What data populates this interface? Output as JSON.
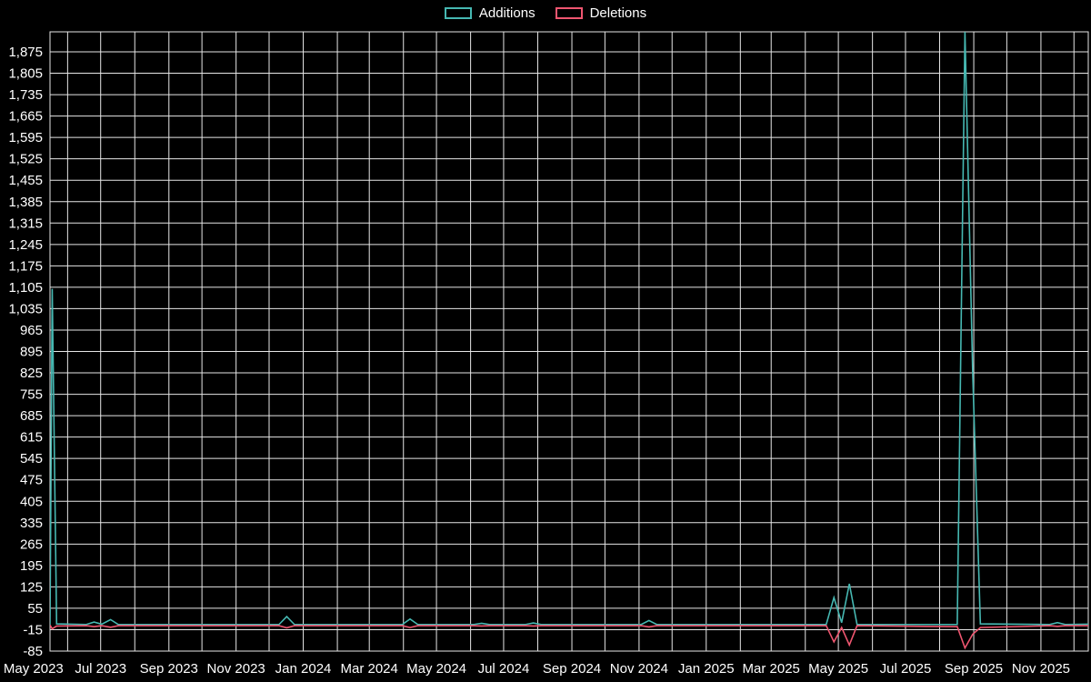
{
  "legend": {
    "additions_label": "Additions",
    "deletions_label": "Deletions"
  },
  "chart_data": {
    "type": "line",
    "title": "",
    "xlabel": "",
    "ylabel": "",
    "grid": true,
    "legend_position": "top-center",
    "colors": {
      "additions": "#46b8b2",
      "deletions": "#ef5670",
      "grid": "#e6e6e6",
      "text": "#ffffff",
      "background": "#000000"
    },
    "y_axis": {
      "min": -85,
      "max": 1875,
      "tick_step": 70,
      "tick_values": [
        1875,
        1805,
        1735,
        1665,
        1595,
        1525,
        1455,
        1385,
        1315,
        1245,
        1175,
        1105,
        1035,
        965,
        895,
        825,
        755,
        685,
        615,
        545,
        475,
        405,
        335,
        265,
        195,
        125,
        55,
        -15,
        -85
      ],
      "tick_labels": [
        "1,875",
        "1,805",
        "1,735",
        "1,665",
        "1,595",
        "1,525",
        "1,455",
        "1,385",
        "1,315",
        "1,245",
        "1,175",
        "1,105",
        "1,035",
        "965",
        "895",
        "825",
        "755",
        "685",
        "615",
        "545",
        "475",
        "405",
        "335",
        "265",
        "195",
        "125",
        "55",
        "-15",
        "-85"
      ]
    },
    "x_axis": {
      "start": "2023-05-16",
      "end": "2025-12-14",
      "ticks": [
        {
          "label": "May 2023",
          "date": "2023-05-01"
        },
        {
          "label": "Jul 2023",
          "date": "2023-07-01"
        },
        {
          "label": "Sep 2023",
          "date": "2023-09-01"
        },
        {
          "label": "Nov 2023",
          "date": "2023-11-01"
        },
        {
          "label": "Jan 2024",
          "date": "2024-01-01"
        },
        {
          "label": "Mar 2024",
          "date": "2024-03-01"
        },
        {
          "label": "May 2024",
          "date": "2024-05-01"
        },
        {
          "label": "Jul 2024",
          "date": "2024-07-01"
        },
        {
          "label": "Sep 2024",
          "date": "2024-09-01"
        },
        {
          "label": "Nov 2024",
          "date": "2024-11-01"
        },
        {
          "label": "Jan 2025",
          "date": "2025-01-01"
        },
        {
          "label": "Mar 2025",
          "date": "2025-03-01"
        },
        {
          "label": "May 2025",
          "date": "2025-05-01"
        },
        {
          "label": "Jul 2025",
          "date": "2025-07-01"
        },
        {
          "label": "Sep 2025",
          "date": "2025-09-01"
        },
        {
          "label": "Nov 2025",
          "date": "2025-11-01"
        }
      ]
    },
    "series_names": [
      "Additions",
      "Deletions"
    ],
    "points": [
      {
        "date": "2023-05-16",
        "additions": 0,
        "deletions": 0
      },
      {
        "date": "2023-05-18",
        "additions": 1100,
        "deletions": -12
      },
      {
        "date": "2023-05-22",
        "additions": 4,
        "deletions": -3
      },
      {
        "date": "2023-06-18",
        "additions": 2,
        "deletions": -2
      },
      {
        "date": "2023-06-25",
        "additions": 10,
        "deletions": -5
      },
      {
        "date": "2023-07-02",
        "additions": 3,
        "deletions": -2
      },
      {
        "date": "2023-07-10",
        "additions": 18,
        "deletions": -7
      },
      {
        "date": "2023-07-17",
        "additions": 2,
        "deletions": -2
      },
      {
        "date": "2023-12-10",
        "additions": 2,
        "deletions": -2
      },
      {
        "date": "2023-12-17",
        "additions": 28,
        "deletions": -9
      },
      {
        "date": "2023-12-24",
        "additions": 2,
        "deletions": -2
      },
      {
        "date": "2024-03-31",
        "additions": 2,
        "deletions": -2
      },
      {
        "date": "2024-04-07",
        "additions": 20,
        "deletions": -8
      },
      {
        "date": "2024-04-14",
        "additions": 2,
        "deletions": -2
      },
      {
        "date": "2024-06-04",
        "additions": 2,
        "deletions": -2
      },
      {
        "date": "2024-06-11",
        "additions": 6,
        "deletions": -3
      },
      {
        "date": "2024-06-18",
        "additions": 2,
        "deletions": -2
      },
      {
        "date": "2024-07-21",
        "additions": 2,
        "deletions": -2
      },
      {
        "date": "2024-07-28",
        "additions": 7,
        "deletions": -3
      },
      {
        "date": "2024-08-04",
        "additions": 2,
        "deletions": -2
      },
      {
        "date": "2024-11-03",
        "additions": 2,
        "deletions": -2
      },
      {
        "date": "2024-11-10",
        "additions": 15,
        "deletions": -6
      },
      {
        "date": "2024-11-17",
        "additions": 2,
        "deletions": -2
      },
      {
        "date": "2025-04-20",
        "additions": 2,
        "deletions": -2
      },
      {
        "date": "2025-04-27",
        "additions": 90,
        "deletions": -55
      },
      {
        "date": "2025-05-04",
        "additions": 8,
        "deletions": -8
      },
      {
        "date": "2025-05-11",
        "additions": 135,
        "deletions": -65
      },
      {
        "date": "2025-05-18",
        "additions": 2,
        "deletions": -2
      },
      {
        "date": "2025-08-17",
        "additions": 2,
        "deletions": -5
      },
      {
        "date": "2025-08-24",
        "additions": 1940,
        "deletions": -75
      },
      {
        "date": "2025-08-31",
        "additions": 830,
        "deletions": -30
      },
      {
        "date": "2025-09-07",
        "additions": 4,
        "deletions": -8
      },
      {
        "date": "2025-11-09",
        "additions": 2,
        "deletions": -2
      },
      {
        "date": "2025-11-16",
        "additions": 8,
        "deletions": -4
      },
      {
        "date": "2025-11-23",
        "additions": 2,
        "deletions": -2
      },
      {
        "date": "2025-12-14",
        "additions": 3,
        "deletions": -2
      }
    ]
  }
}
